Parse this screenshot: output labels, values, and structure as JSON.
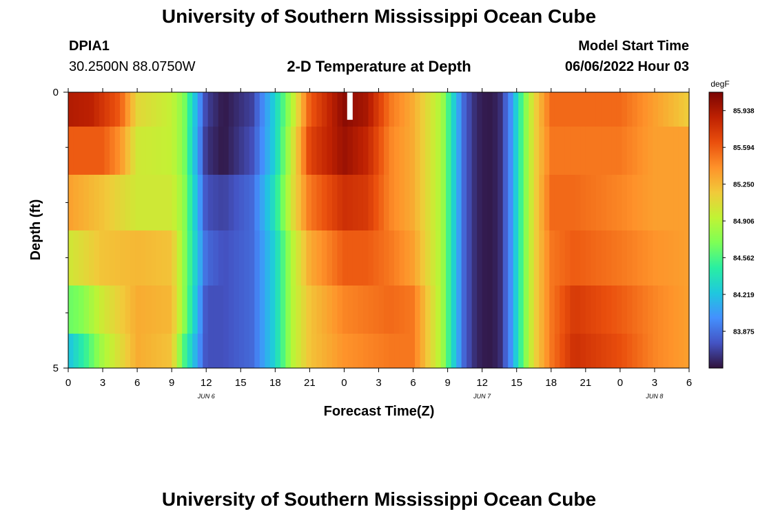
{
  "header": {
    "title": "University of Southern Mississippi Ocean Cube",
    "station_id": "DPIA1",
    "station_coords": "30.2500N  88.0750W",
    "plot_title": "2-D Temperature at Depth",
    "model_start_label": "Model Start Time",
    "model_start_value": "06/06/2022 Hour 03"
  },
  "footer": {
    "title": "University of Southern Mississippi Ocean Cube"
  },
  "chart_data": {
    "type": "heatmap",
    "title": "2-D Temperature at Depth",
    "xlabel": "Forecast Time(Z)",
    "ylabel": "Depth (ft)",
    "x_range_hours_from_jun6_00z": [
      0,
      54
    ],
    "x_tick_labels": [
      "0",
      "3",
      "6",
      "9",
      "12",
      "15",
      "18",
      "21",
      "0",
      "3",
      "6",
      "9",
      "12",
      "15",
      "18",
      "21",
      "0",
      "3",
      "6"
    ],
    "date_labels": [
      {
        "label": "JUN 6",
        "hour": 12
      },
      {
        "label": "JUN 7",
        "hour": 36
      },
      {
        "label": "JUN 8",
        "hour": 51
      }
    ],
    "y_range": [
      0,
      5
    ],
    "y_tick_labels": [
      "0",
      "5"
    ],
    "y_ticks_minor": [
      1,
      2,
      3,
      4
    ],
    "colorbar": {
      "unit": "degF",
      "min": 83.53,
      "max": 86.11,
      "tick_values": [
        83.875,
        84.219,
        84.562,
        84.906,
        85.25,
        85.594,
        85.938
      ],
      "tick_labels": [
        "83.875",
        "84.219",
        "84.562",
        "84.906",
        "85.250",
        "85.594",
        "85.938"
      ]
    },
    "depth_layers": [
      {
        "depth": 0.25,
        "x": [
          0,
          2,
          4.5,
          6,
          9,
          10,
          12,
          13.5,
          16,
          18,
          19.5,
          21,
          24,
          26,
          28,
          30,
          32.5,
          33.5,
          34.5,
          35.5,
          36.5,
          37.5,
          38.5,
          39.5,
          40.5,
          42,
          44,
          48,
          51,
          54
        ],
        "values": [
          85.92,
          85.88,
          85.6,
          85.1,
          84.95,
          84.75,
          83.7,
          83.55,
          83.7,
          84.3,
          84.9,
          85.6,
          86.05,
          85.95,
          85.5,
          85.3,
          84.85,
          84.3,
          83.8,
          83.6,
          83.55,
          83.6,
          84.0,
          84.6,
          85.1,
          85.55,
          85.55,
          85.55,
          85.35,
          85.15
        ]
      },
      {
        "depth": 1.0,
        "x": [
          0,
          3,
          4.5,
          6,
          9,
          10,
          12,
          13.5,
          16,
          18,
          19.5,
          21,
          24,
          26,
          28,
          30,
          32.5,
          33.5,
          34.5,
          35.5,
          36.5,
          37.5,
          38.5,
          39.5,
          40.5,
          42,
          44,
          48,
          51,
          54
        ],
        "values": [
          85.6,
          85.6,
          85.4,
          85.0,
          84.95,
          84.75,
          83.65,
          83.55,
          83.75,
          84.3,
          85.0,
          85.7,
          86.0,
          85.85,
          85.45,
          85.3,
          84.85,
          84.3,
          83.8,
          83.6,
          83.55,
          83.6,
          84.0,
          84.6,
          85.1,
          85.5,
          85.5,
          85.5,
          85.35,
          85.35
        ]
      },
      {
        "depth": 2.0,
        "x": [
          0,
          3,
          6,
          9,
          10,
          12,
          13.5,
          16,
          18,
          19.5,
          21,
          24,
          26,
          28,
          30,
          32.5,
          33.5,
          34.5,
          35.5,
          36.5,
          37.5,
          38.5,
          39.5,
          40.5,
          42,
          44,
          48,
          51,
          54
        ],
        "values": [
          85.35,
          85.2,
          85.0,
          85.0,
          84.8,
          83.75,
          83.7,
          83.85,
          84.4,
          85.05,
          85.5,
          85.8,
          85.75,
          85.45,
          85.3,
          84.85,
          84.3,
          83.8,
          83.6,
          83.55,
          83.6,
          84.0,
          84.6,
          85.1,
          85.55,
          85.55,
          85.45,
          85.35,
          85.35
        ]
      },
      {
        "depth": 3.0,
        "x": [
          0,
          3,
          6,
          9,
          10,
          12,
          13.5,
          16,
          18,
          19.5,
          21,
          24,
          26,
          28,
          30,
          32.5,
          33.5,
          34.5,
          35.5,
          36.5,
          37.5,
          38.5,
          39.5,
          40.5,
          42,
          44,
          48,
          51,
          54
        ],
        "values": [
          85.0,
          85.2,
          85.25,
          85.2,
          84.8,
          83.85,
          83.75,
          83.85,
          84.3,
          84.9,
          85.3,
          85.6,
          85.6,
          85.5,
          85.35,
          84.85,
          84.3,
          83.8,
          83.6,
          83.55,
          83.6,
          84.0,
          84.6,
          85.1,
          85.5,
          85.6,
          85.5,
          85.4,
          85.35
        ]
      },
      {
        "depth": 4.0,
        "x": [
          0,
          1,
          3,
          6,
          9,
          10,
          12,
          13.5,
          16,
          18,
          19.5,
          21,
          24,
          26,
          28,
          30,
          32.5,
          33.5,
          34.5,
          35.5,
          36.5,
          37.5,
          38.5,
          39.5,
          40.5,
          42,
          44,
          48,
          51,
          54
        ],
        "values": [
          84.65,
          84.7,
          85.0,
          85.3,
          85.25,
          84.8,
          83.75,
          83.75,
          83.85,
          84.3,
          84.9,
          85.2,
          85.45,
          85.5,
          85.55,
          85.5,
          84.85,
          84.3,
          83.8,
          83.6,
          83.55,
          83.6,
          84.0,
          84.6,
          85.1,
          85.5,
          85.75,
          85.6,
          85.45,
          85.35
        ]
      },
      {
        "depth": 4.75,
        "x": [
          0,
          1.5,
          3,
          6,
          9,
          10,
          12,
          13.5,
          16,
          18,
          19.5,
          21,
          24,
          26,
          28,
          30,
          32.5,
          33.5,
          34.5,
          35.5,
          36.5,
          37.5,
          38.5,
          39.5,
          40.5,
          42,
          44,
          48,
          51,
          54
        ],
        "values": [
          84.2,
          84.5,
          84.85,
          85.3,
          85.2,
          84.6,
          83.75,
          83.75,
          83.85,
          84.3,
          84.9,
          85.2,
          85.4,
          85.45,
          85.5,
          85.5,
          84.85,
          84.3,
          83.8,
          83.6,
          83.55,
          83.6,
          84.0,
          84.6,
          85.1,
          85.5,
          85.8,
          85.65,
          85.45,
          85.35
        ]
      }
    ],
    "missing_data": [
      {
        "hour": 24.5,
        "depth_from": 0,
        "depth_to": 0.5
      }
    ]
  },
  "colors": {
    "background": "#ffffff",
    "missing": "#ffffff",
    "colormap": [
      "#30123b",
      "#4454c4",
      "#4490fe",
      "#1fc8de",
      "#29efa2",
      "#7dff56",
      "#c1f334",
      "#f1ca3a",
      "#fe922a",
      "#ea4f0d",
      "#be2102",
      "#7a0403"
    ]
  }
}
